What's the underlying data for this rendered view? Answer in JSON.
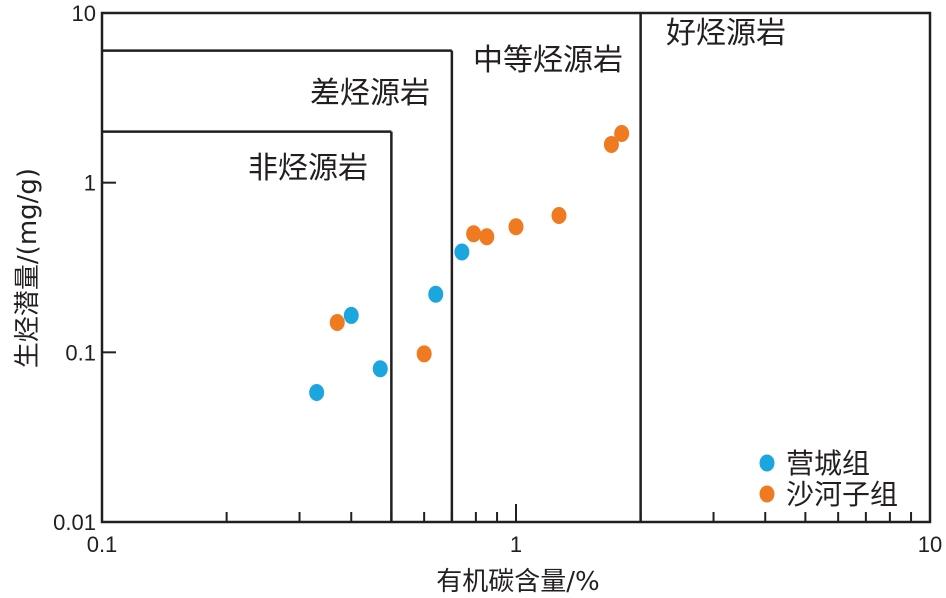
{
  "chart_data": {
    "type": "scatter",
    "xlabel": "有机碳含量/%",
    "ylabel": "生烃潜量/(mg/g)",
    "x_scale": "log",
    "y_scale": "log",
    "xlim": [
      0.1,
      10
    ],
    "ylim": [
      0.01,
      10
    ],
    "x_ticks": [
      {
        "value": 0.1,
        "label": "0.1"
      },
      {
        "value": 1,
        "label": "1"
      },
      {
        "value": 10,
        "label": "10"
      }
    ],
    "y_ticks": [
      {
        "value": 0.01,
        "label": "0.01"
      },
      {
        "value": 0.1,
        "label": "0.1"
      },
      {
        "value": 1,
        "label": "1"
      },
      {
        "value": 10,
        "label": "10"
      }
    ],
    "grid": false,
    "legend_position": "bottom-right",
    "regions": [
      {
        "label": "非烃源岩",
        "x_max": 0.5,
        "y_max": 2
      },
      {
        "label": "差烃源岩",
        "x_max": 0.7,
        "y_max": 6
      },
      {
        "label": "中等烃源岩",
        "x_max": 2,
        "y_max": 10
      },
      {
        "label": "好烃源岩",
        "x_max": 10,
        "y_max": 10
      }
    ],
    "series": [
      {
        "name": "营城组",
        "color": "#1ba6e0",
        "points": [
          [
            0.33,
            0.058
          ],
          [
            0.4,
            0.165
          ],
          [
            0.47,
            0.08
          ],
          [
            0.64,
            0.22
          ],
          [
            0.74,
            0.39
          ]
        ]
      },
      {
        "name": "沙河子组",
        "color": "#f07a20",
        "points": [
          [
            0.37,
            0.15
          ],
          [
            0.6,
            0.098
          ],
          [
            0.79,
            0.5
          ],
          [
            0.85,
            0.48
          ],
          [
            1.0,
            0.55
          ],
          [
            1.27,
            0.64
          ],
          [
            1.7,
            1.68
          ],
          [
            1.8,
            1.95
          ]
        ]
      }
    ]
  }
}
